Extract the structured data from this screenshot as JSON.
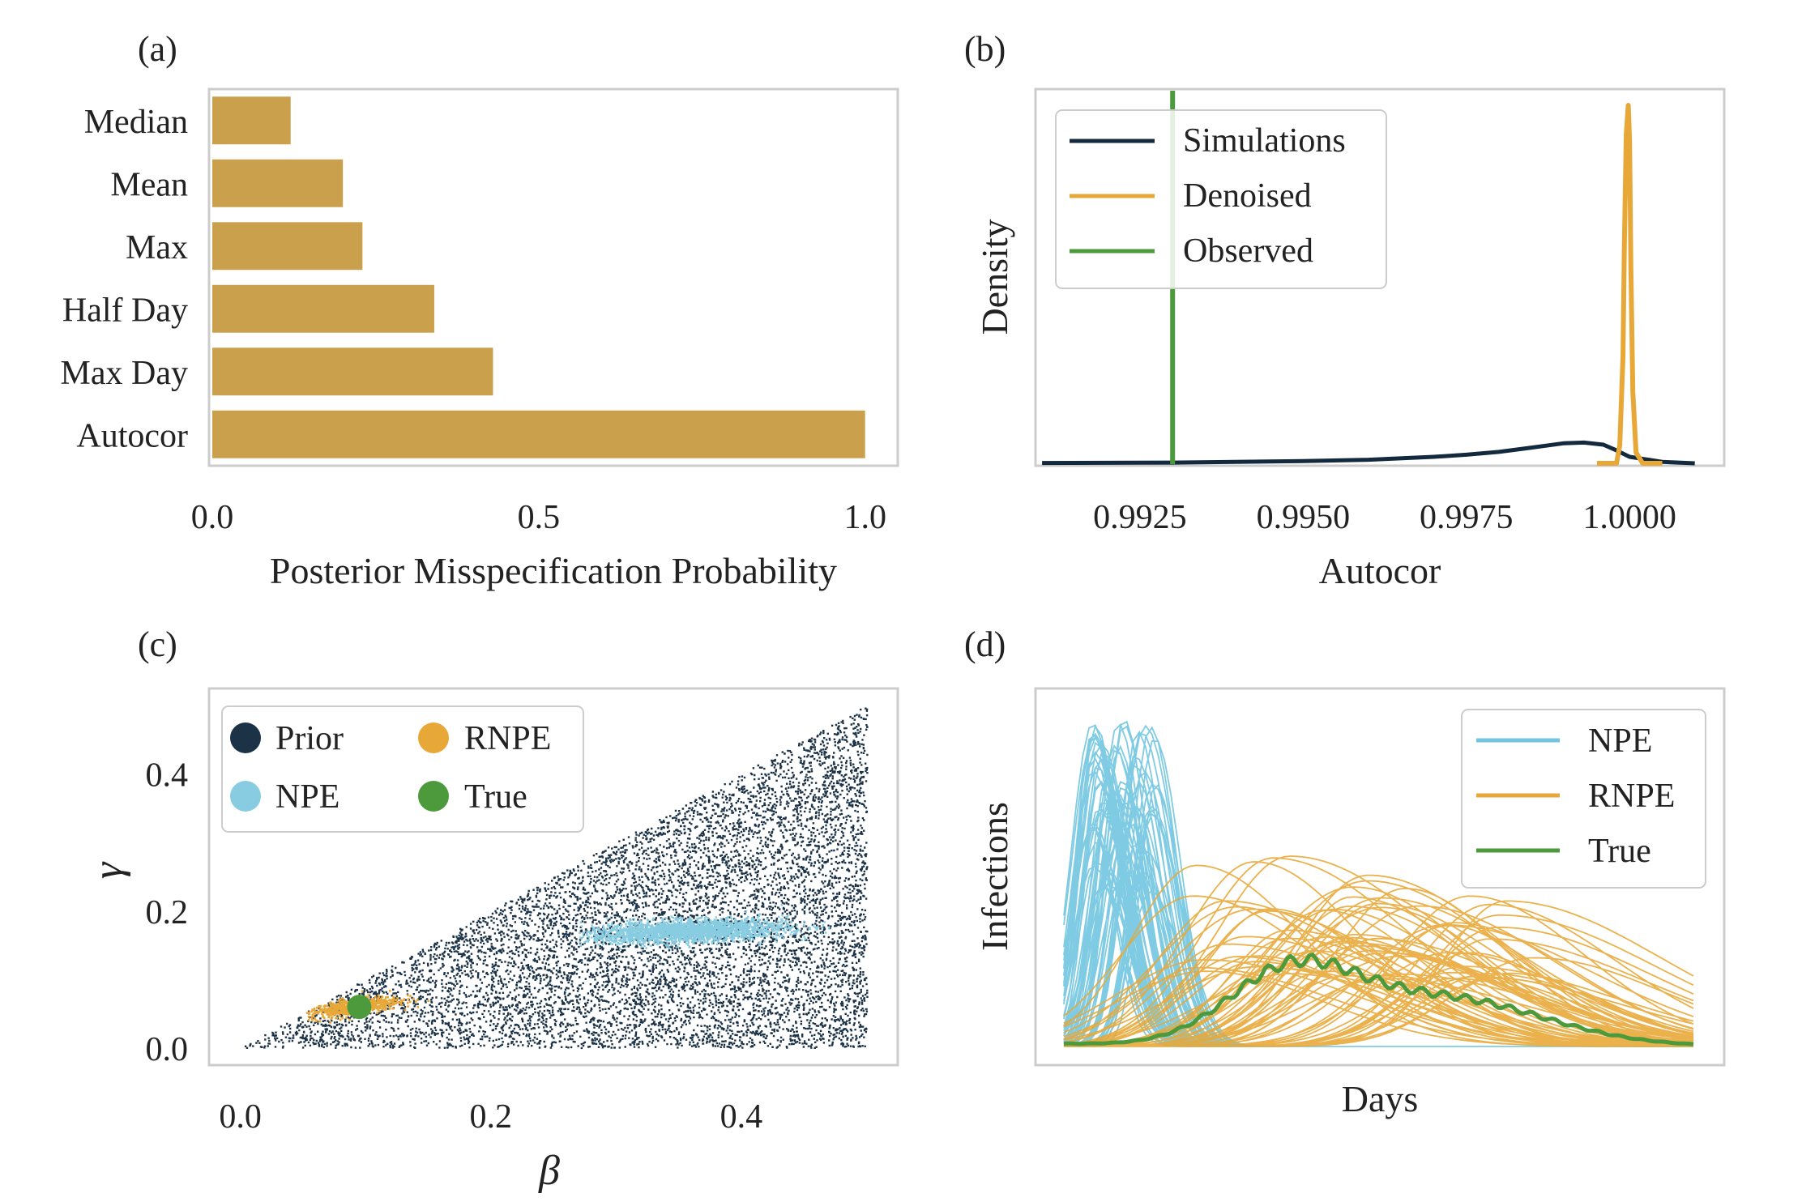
{
  "chart_data": [
    {
      "panel_label": "(a)",
      "type": "bar",
      "orientation": "horizontal",
      "categories": [
        "Median",
        "Mean",
        "Max",
        "Half Day",
        "Max Day",
        "Autocor"
      ],
      "values": [
        0.12,
        0.2,
        0.23,
        0.34,
        0.43,
        1.0
      ],
      "xlim": [
        -0.005,
        1.05
      ],
      "xticks": [
        0.0,
        0.5,
        1.0
      ],
      "xtick_labels": [
        "0.0",
        "0.5",
        "1.0"
      ],
      "xlabel": "Posterior Misspecification Probability",
      "ylabel": "",
      "color": "#cba04d",
      "grid": false
    },
    {
      "panel_label": "(b)",
      "type": "line",
      "xlim": [
        0.9909,
        1.00145
      ],
      "xticks": [
        0.9925,
        0.995,
        0.9975,
        1.0
      ],
      "xtick_labels": [
        "0.9925",
        "0.9950",
        "0.9975",
        "1.0000"
      ],
      "xlabel": "Autocor",
      "ylabel": "Density",
      "legend": "top-left",
      "series": [
        {
          "name": "Simulations",
          "color": "#13293d",
          "x": [
            0.991,
            0.993,
            0.995,
            0.996,
            0.997,
            0.9975,
            0.998,
            0.9985,
            0.999,
            0.9993,
            0.9996,
            0.9998,
            1.0,
            1.0005,
            1.001
          ],
          "y": [
            0.001,
            0.002,
            0.006,
            0.01,
            0.018,
            0.024,
            0.032,
            0.044,
            0.056,
            0.058,
            0.052,
            0.036,
            0.018,
            0.004,
            0.0
          ]
        },
        {
          "name": "Denoised",
          "color": "#e8a838",
          "x": [
            0.9995,
            0.9998,
            0.99985,
            0.9999,
            0.99992,
            0.99995,
            0.99998,
            1.0,
            1.00002,
            1.00005,
            1.0001,
            1.0002,
            1.0005
          ],
          "y": [
            0.0,
            0.0,
            0.05,
            0.3,
            0.6,
            0.92,
            1.0,
            0.9,
            0.55,
            0.2,
            0.03,
            0.0,
            0.0
          ]
        }
      ],
      "vlines": [
        {
          "name": "Observed",
          "color": "#4c9a3c",
          "x": 0.993
        }
      ]
    },
    {
      "panel_label": "(c)",
      "type": "scatter",
      "xlim": [
        -0.025,
        0.525
      ],
      "ylim": [
        -0.025,
        0.525
      ],
      "xticks": [
        0.0,
        0.2,
        0.4
      ],
      "xtick_labels": [
        "0.0",
        "0.2",
        "0.4"
      ],
      "yticks": [
        0.0,
        0.2,
        0.4
      ],
      "ytick_labels": [
        "0.0",
        "0.2",
        "0.4"
      ],
      "xlabel": "β",
      "ylabel": "γ",
      "legend": "top-left",
      "series": [
        {
          "name": "Prior",
          "color": "#1c3347",
          "region": "uniform, γ < β",
          "x_range": [
            0.0,
            0.5
          ],
          "y_range": [
            0.0,
            0.5
          ]
        },
        {
          "name": "NPE",
          "color": "#88cce2",
          "center": [
            0.355,
            0.17
          ],
          "x_range": [
            0.27,
            0.47
          ],
          "y_range": [
            0.14,
            0.2
          ]
        },
        {
          "name": "RNPE",
          "color": "#e8a838",
          "center": [
            0.09,
            0.06
          ],
          "x_range": [
            0.05,
            0.15
          ],
          "y_range": [
            0.04,
            0.09
          ]
        },
        {
          "name": "True",
          "color": "#4c9a3c",
          "x": [
            0.095
          ],
          "y": [
            0.06
          ]
        }
      ]
    },
    {
      "panel_label": "(d)",
      "type": "line",
      "x": "days 0-200",
      "xlabel": "Days",
      "ylabel": "Infections",
      "legend": "top-right",
      "series": [
        {
          "name": "NPE",
          "color": "#71c5e0",
          "peak_day_range": [
            9,
            30
          ],
          "peak_height_range": [
            0.45,
            1.0
          ],
          "width_range": [
            5,
            8
          ],
          "count": 70
        },
        {
          "name": "RNPE",
          "color": "#e8a838",
          "peak_day_range": [
            40,
            150
          ],
          "peak_height_range": [
            0.2,
            0.57
          ],
          "width_range": [
            18,
            40
          ],
          "count": 70
        },
        {
          "name": "True",
          "color": "#4c9a3c",
          "peaks": [
            {
              "day": 72,
              "height": 0.2,
              "width": 20
            },
            {
              "day": 120,
              "height": 0.14,
              "width": 32
            }
          ],
          "weekly_wiggle": true
        }
      ]
    }
  ]
}
